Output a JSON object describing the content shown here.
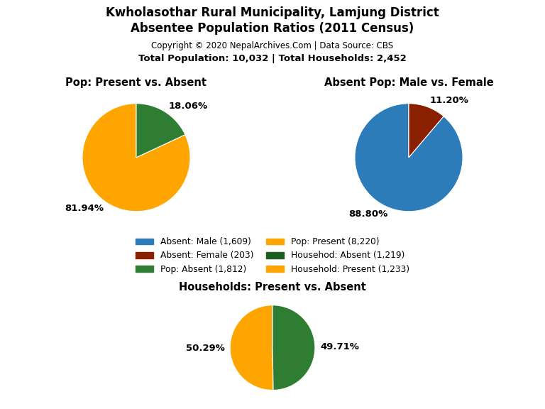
{
  "title": "Kwholasothar Rural Municipality, Lamjung District\nAbsentee Population Ratios (2011 Census)",
  "subtitle": "Copyright © 2020 NepalArchives.Com | Data Source: CBS",
  "annotations": [
    "Total Population: 10,032 | Total Households: 2,452"
  ],
  "legend_entries": [
    {
      "name": "Absent: Male (1,609)",
      "color": "#2B7CB8"
    },
    {
      "name": "Absent: Female (203)",
      "color": "#8B2000"
    },
    {
      "name": "Pop: Absent (1,812)",
      "color": "#2E7D32"
    },
    {
      "name": "Pop: Present (8,220)",
      "color": "#FFA500"
    },
    {
      "name": "Househod: Absent (1,219)",
      "color": "#1B5E20"
    },
    {
      "name": "Household: Present (1,233)",
      "color": "#FFA500"
    }
  ],
  "chart_data": [
    {
      "type": "pie",
      "title": "Pop: Present vs. Absent",
      "values": [
        81.94,
        18.06
      ],
      "value_labels": [
        "81.94%",
        "18.06%"
      ],
      "colors": [
        "#FFA500",
        "#2E7D32"
      ],
      "data_labels": true
    },
    {
      "type": "pie",
      "title": "Absent Pop: Male vs. Female",
      "values": [
        88.8,
        11.2
      ],
      "value_labels": [
        "88.80%",
        "11.20%"
      ],
      "colors": [
        "#2B7CB8",
        "#8B2000"
      ],
      "data_labels": true
    },
    {
      "type": "pie",
      "title": "Households: Present vs. Absent",
      "values": [
        50.29,
        49.71
      ],
      "value_labels": [
        "50.29%",
        "49.71%"
      ],
      "colors": [
        "#FFA500",
        "#2E7D32"
      ],
      "data_labels": true
    }
  ]
}
